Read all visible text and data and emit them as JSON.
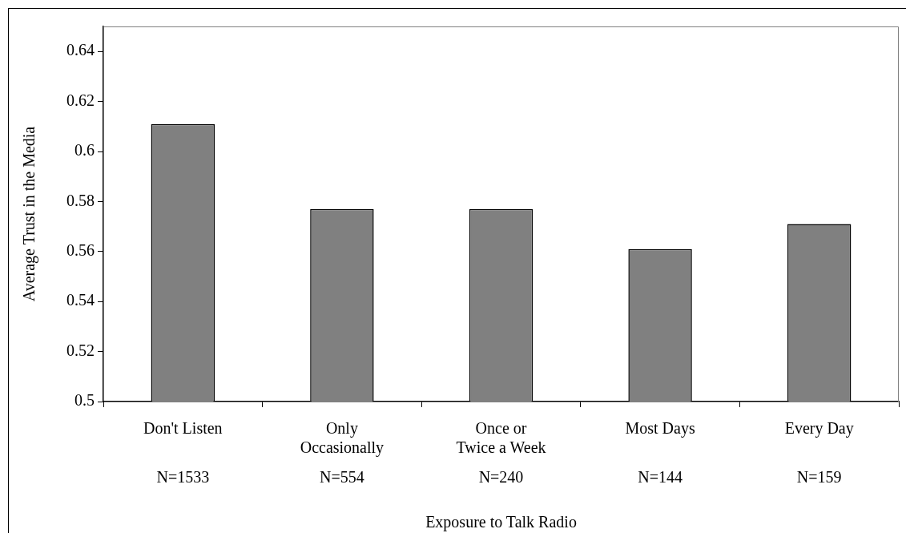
{
  "chart_data": {
    "type": "bar",
    "categories": [
      "Don't Listen",
      "Only\nOccasionally",
      "Once or\nTwice a Week",
      "Most Days",
      "Every Day"
    ],
    "values": [
      0.611,
      0.577,
      0.577,
      0.561,
      0.571
    ],
    "color": "#808080",
    "xlabel": "Exposure to Talk Radio",
    "ylabel": "Average Trust in the Media",
    "ylim": [
      0.5,
      0.65
    ],
    "yticks": [
      0.5,
      0.52,
      0.54,
      0.56,
      0.58,
      0.6,
      0.62,
      0.64
    ],
    "annotations": [
      "N=1533",
      "N=554",
      "N=240",
      "N=144",
      "N=159"
    ],
    "grid": false,
    "legend": false
  }
}
